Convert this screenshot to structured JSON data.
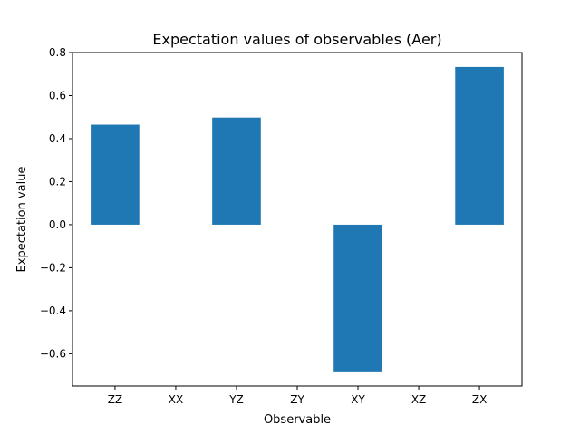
{
  "chart_data": {
    "type": "bar",
    "title": "Expectation values of observables (Aer)",
    "xlabel": "Observable",
    "ylabel": "Expectation value",
    "categories": [
      "ZZ",
      "XX",
      "YZ",
      "ZY",
      "XY",
      "XZ",
      "ZX"
    ],
    "values": [
      0.465,
      0,
      0.498,
      0,
      -0.682,
      0,
      0.733
    ],
    "ylim": [
      -0.75,
      0.8
    ],
    "yticks": [
      -0.6,
      -0.4,
      -0.2,
      0.0,
      0.2,
      0.4,
      0.6,
      0.8
    ],
    "ytick_labels": [
      "−0.6",
      "−0.4",
      "−0.2",
      "0.0",
      "0.2",
      "0.4",
      "0.6",
      "0.8"
    ],
    "grid": false,
    "bar_color": "#1f77b4"
  }
}
